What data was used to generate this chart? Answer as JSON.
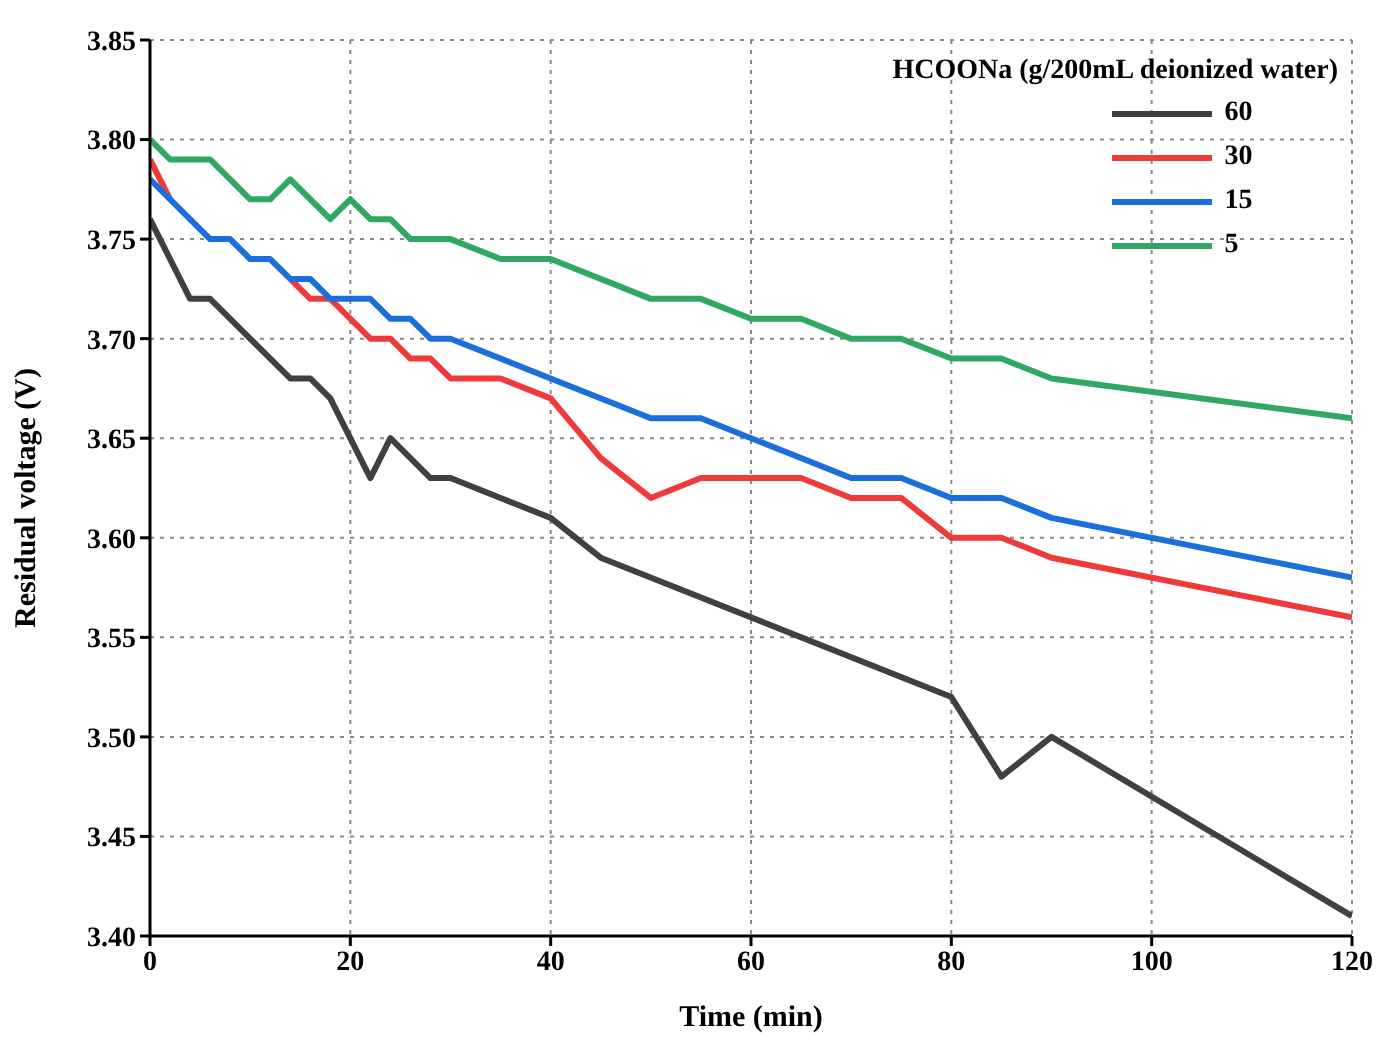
{
  "chart_data": {
    "type": "line",
    "xlabel": "Time (min)",
    "ylabel": "Residual voltage (V)",
    "legend_title": "HCOONa (g/200mL deionized water)",
    "xlim": [
      0,
      120
    ],
    "xticks": [
      0,
      20,
      40,
      60,
      80,
      100,
      120
    ],
    "ylim": [
      3.4,
      3.85
    ],
    "yticks": [
      {
        "value": 3.4,
        "label": "3.40"
      },
      3.45,
      {
        "value": 3.5,
        "label": "3.50"
      },
      3.55,
      {
        "value": 3.6,
        "label": "3.60"
      },
      3.65,
      {
        "value": 3.7,
        "label": "3.70"
      },
      3.75,
      {
        "value": 3.8,
        "label": "3.80"
      },
      3.85
    ],
    "grid": true,
    "legend": "top right",
    "marker": "none",
    "line_style": "solid",
    "series": [
      {
        "name": "60",
        "color": "#404040",
        "x": [
          0,
          4,
          6,
          14,
          16,
          18,
          22,
          24,
          28,
          30,
          40,
          45,
          80,
          85,
          90,
          120
        ],
        "values": [
          3.76,
          3.72,
          3.72,
          3.68,
          3.68,
          3.67,
          3.63,
          3.65,
          3.63,
          3.63,
          3.61,
          3.59,
          3.52,
          3.48,
          3.5,
          3.41
        ]
      },
      {
        "name": "30",
        "color": "#ee3a3a",
        "x": [
          0,
          2,
          6,
          8,
          10,
          12,
          14,
          16,
          18,
          22,
          24,
          26,
          28,
          30,
          35,
          40,
          45,
          50,
          55,
          65,
          70,
          75,
          80,
          85,
          90,
          120
        ],
        "values": [
          3.79,
          3.77,
          null,
          null,
          null,
          null,
          3.73,
          3.72,
          3.72,
          3.7,
          3.7,
          3.69,
          3.69,
          3.68,
          3.68,
          3.67,
          3.64,
          3.62,
          3.63,
          3.63,
          3.62,
          3.62,
          3.6,
          3.6,
          3.59,
          3.56
        ]
      },
      {
        "name": "15",
        "color": "#1a6fdc",
        "x": [
          0,
          6,
          8,
          10,
          12,
          14,
          16,
          18,
          22,
          24,
          26,
          28,
          30,
          40,
          50,
          55,
          70,
          75,
          80,
          85,
          90,
          120
        ],
        "values": [
          3.78,
          3.75,
          3.75,
          3.74,
          3.74,
          3.73,
          3.73,
          3.72,
          3.72,
          3.71,
          3.71,
          3.7,
          3.7,
          3.68,
          3.66,
          3.66,
          3.63,
          3.63,
          3.62,
          3.62,
          3.61,
          3.58
        ]
      },
      {
        "name": "5",
        "color": "#2ea862",
        "x": [
          0,
          2,
          6,
          10,
          12,
          14,
          18,
          20,
          22,
          24,
          26,
          30,
          35,
          40,
          50,
          55,
          60,
          65,
          70,
          75,
          80,
          85,
          90,
          120
        ],
        "values": [
          3.8,
          3.79,
          3.79,
          3.77,
          3.77,
          3.78,
          3.76,
          3.77,
          3.76,
          3.76,
          3.75,
          3.75,
          3.74,
          3.74,
          3.72,
          3.72,
          3.71,
          3.71,
          3.7,
          3.7,
          3.69,
          3.69,
          3.68,
          3.66
        ]
      }
    ]
  }
}
